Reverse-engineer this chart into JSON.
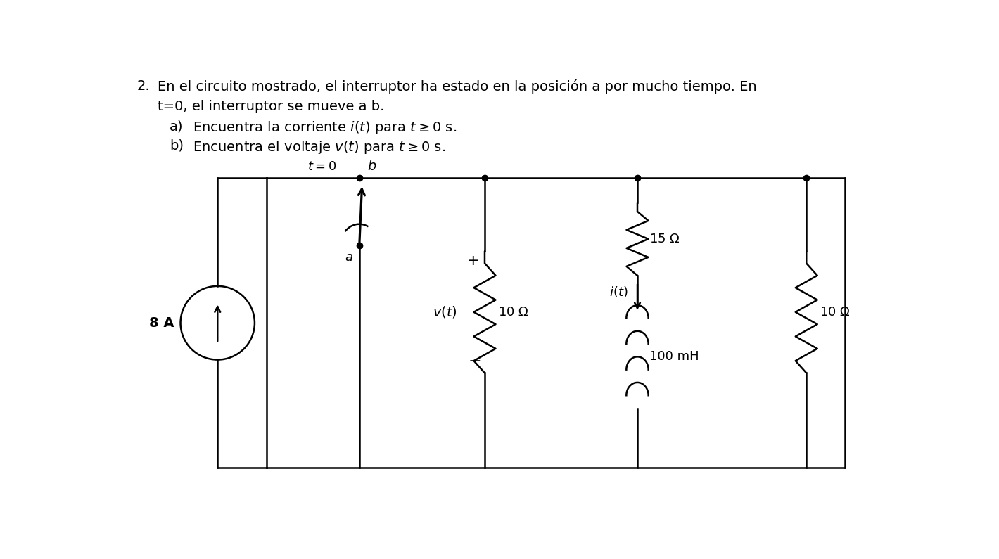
{
  "line_color": "#000000",
  "line_width": 1.8,
  "font_size_header": 14,
  "font_size_circuit": 13,
  "header_line1": "En el circuito mostrado, el interruptor ha estado en la posición a por mucho tiempo. En",
  "header_line2": "t=0, el interruptor se mueve a b.",
  "item_a_prefix": "a)",
  "item_a_text": "Encuentra la corriente $i(t)$ para $t \\geq 0$ s.",
  "item_b_prefix": "b)",
  "item_b_text": "Encuentra el voltaje $v(t)$ para $t \\geq 0$ s.",
  "t0_label": "$t = 0$",
  "b_label": "$b$",
  "a_label": "$a$",
  "source_label": "8 A",
  "res1_label": "10 Ω",
  "res2_label": "15 Ω",
  "ind_label": "100 mH",
  "res3_label": "10 Ω",
  "vt_label": "$v(t)$",
  "it_label": "$i(t)$"
}
